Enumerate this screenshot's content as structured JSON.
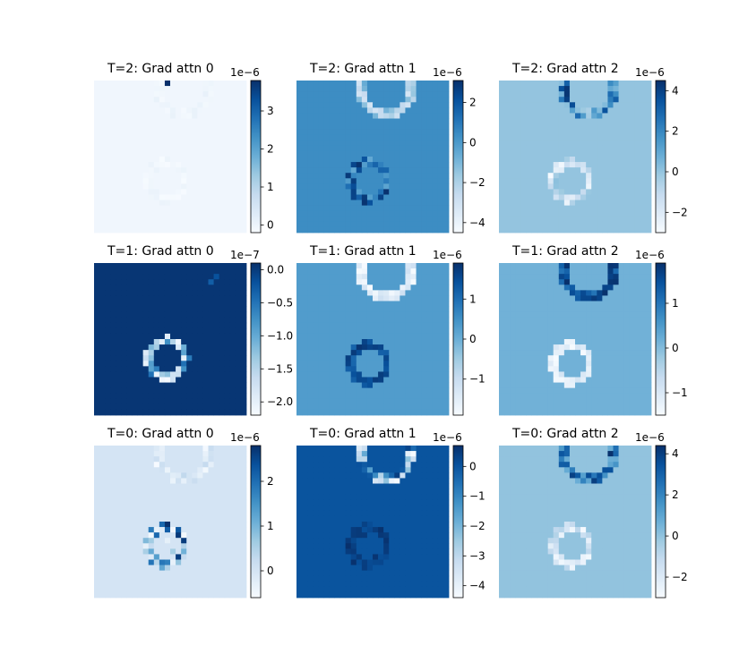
{
  "chart_data": [
    {
      "type": "heatmap",
      "title": "T=2: Grad attn 0",
      "colormap": "Blues",
      "offset_label": "1e−6",
      "cbar_ticks": [
        "0",
        "1",
        "2",
        "3"
      ],
      "cbar_tick_values": [
        0,
        1,
        2,
        3
      ],
      "clim": [
        -0.2,
        3.8
      ],
      "background_value": -0.05,
      "rings": [
        {
          "cx": 0.59,
          "cy": 0.05,
          "r": 0.17,
          "vmin": -0.15,
          "vmax": 0.1
        },
        {
          "cx": 0.47,
          "cy": 0.66,
          "r": 0.12,
          "vmin": -0.2,
          "vmax": 0.05
        }
      ],
      "hot_spots": [
        {
          "x": 0.47,
          "y": 0.0,
          "value": 3.8
        }
      ]
    },
    {
      "type": "heatmap",
      "title": "T=2: Grad attn 1",
      "colormap": "Blues",
      "offset_label": "1e−6",
      "cbar_ticks": [
        "2",
        "0",
        "−2",
        "−4"
      ],
      "cbar_tick_values": [
        2,
        0,
        -2,
        -4
      ],
      "clim": [
        -4.5,
        3.1
      ],
      "background_value": 0.4,
      "rings": [
        {
          "cx": 0.59,
          "cy": 0.05,
          "r": 0.17,
          "vmin": -3.2,
          "vmax": -0.5
        },
        {
          "cx": 0.47,
          "cy": 0.66,
          "r": 0.12,
          "vmin": -0.5,
          "vmax": 3.1
        }
      ],
      "hot_spots": []
    },
    {
      "type": "heatmap",
      "title": "T=2: Grad attn 2",
      "colormap": "Blues",
      "offset_label": "1e−6",
      "cbar_ticks": [
        "4",
        "2",
        "0",
        "−2"
      ],
      "cbar_tick_values": [
        4,
        2,
        0,
        -2
      ],
      "clim": [
        -3,
        4.5
      ],
      "background_value": 0.0,
      "rings": [
        {
          "cx": 0.59,
          "cy": 0.05,
          "r": 0.17,
          "vmin": -0.5,
          "vmax": 4.5
        },
        {
          "cx": 0.47,
          "cy": 0.66,
          "r": 0.12,
          "vmin": -3.0,
          "vmax": 0.3
        }
      ],
      "hot_spots": []
    },
    {
      "type": "heatmap",
      "title": "T=1: Grad attn 0",
      "colormap": "Blues",
      "offset_label": "1e−7",
      "cbar_ticks": [
        "0.0",
        "−0.5",
        "−1.0",
        "−1.5",
        "−2.0"
      ],
      "cbar_tick_values": [
        0,
        -0.5,
        -1,
        -1.5,
        -2
      ],
      "clim": [
        -2.2,
        0.1
      ],
      "background_value": 0.05,
      "rings": [
        {
          "cx": 0.48,
          "cy": 0.63,
          "r": 0.12,
          "vmin": -2.2,
          "vmax": -0.4
        }
      ],
      "hot_spots": [
        {
          "x": 0.8,
          "y": 0.08,
          "value": -0.2
        },
        {
          "x": 0.77,
          "y": 0.12,
          "value": -0.3
        }
      ]
    },
    {
      "type": "heatmap",
      "title": "T=1: Grad attn 1",
      "colormap": "Blues",
      "offset_label": "1e−6",
      "cbar_ticks": [
        "1",
        "0",
        "−1"
      ],
      "cbar_tick_values": [
        1,
        0,
        -1
      ],
      "clim": [
        -1.9,
        1.9
      ],
      "background_value": 0.3,
      "rings": [
        {
          "cx": 0.59,
          "cy": 0.05,
          "r": 0.17,
          "vmin": -1.9,
          "vmax": -1.1
        },
        {
          "cx": 0.47,
          "cy": 0.66,
          "r": 0.12,
          "vmin": 1.1,
          "vmax": 1.9
        }
      ],
      "hot_spots": []
    },
    {
      "type": "heatmap",
      "title": "T=1: Grad attn 2",
      "colormap": "Blues",
      "offset_label": "1e−6",
      "cbar_ticks": [
        "1",
        "0",
        "−1"
      ],
      "cbar_tick_values": [
        1,
        0,
        -1
      ],
      "clim": [
        -1.5,
        1.9
      ],
      "background_value": 0.15,
      "rings": [
        {
          "cx": 0.59,
          "cy": 0.05,
          "r": 0.17,
          "vmin": 1.0,
          "vmax": 1.9
        },
        {
          "cx": 0.47,
          "cy": 0.66,
          "r": 0.12,
          "vmin": -1.5,
          "vmax": -0.9
        }
      ],
      "hot_spots": []
    },
    {
      "type": "heatmap",
      "title": "T=0: Grad attn 0",
      "colormap": "Blues",
      "offset_label": "1e−6",
      "cbar_ticks": [
        "2",
        "1",
        "0"
      ],
      "cbar_tick_values": [
        2,
        1,
        0
      ],
      "clim": [
        -0.6,
        2.8
      ],
      "background_value": 0.0,
      "rings": [
        {
          "cx": 0.59,
          "cy": 0.05,
          "r": 0.17,
          "vmin": -0.6,
          "vmax": 0.3
        },
        {
          "cx": 0.47,
          "cy": 0.66,
          "r": 0.12,
          "vmin": -0.6,
          "vmax": 2.8
        }
      ],
      "hot_spots": [
        {
          "x": 0.47,
          "y": 0.62,
          "value": -0.3
        },
        {
          "x": 0.5,
          "y": 0.7,
          "value": 0.6
        }
      ]
    },
    {
      "type": "heatmap",
      "title": "T=0: Grad attn 1",
      "colormap": "Blues",
      "offset_label": "1e−6",
      "cbar_ticks": [
        "0",
        "−1",
        "−2",
        "−3",
        "−4"
      ],
      "cbar_tick_values": [
        0,
        -1,
        -2,
        -3,
        -4
      ],
      "clim": [
        -4.4,
        0.7
      ],
      "background_value": 0.0,
      "rings": [
        {
          "cx": 0.59,
          "cy": 0.05,
          "r": 0.17,
          "vmin": -4.4,
          "vmax": 0.7
        },
        {
          "cx": 0.47,
          "cy": 0.66,
          "r": 0.12,
          "vmin": 0.1,
          "vmax": 0.7
        }
      ],
      "hot_spots": [
        {
          "x": 0.43,
          "y": 0.58,
          "value": 0.5
        },
        {
          "x": 0.53,
          "y": 0.72,
          "value": 0.6
        },
        {
          "x": 0.38,
          "y": 0.66,
          "value": 0.4
        }
      ]
    },
    {
      "type": "heatmap",
      "title": "T=0: Grad attn 2",
      "colormap": "Blues",
      "offset_label": "1e−6",
      "cbar_ticks": [
        "4",
        "2",
        "0",
        "−2"
      ],
      "cbar_tick_values": [
        4,
        2,
        0,
        -2
      ],
      "clim": [
        -3,
        4.4
      ],
      "background_value": 0.0,
      "rings": [
        {
          "cx": 0.59,
          "cy": 0.05,
          "r": 0.17,
          "vmin": 0.5,
          "vmax": 4.4
        },
        {
          "cx": 0.47,
          "cy": 0.66,
          "r": 0.12,
          "vmin": -3.0,
          "vmax": -0.2
        }
      ],
      "hot_spots": []
    }
  ]
}
